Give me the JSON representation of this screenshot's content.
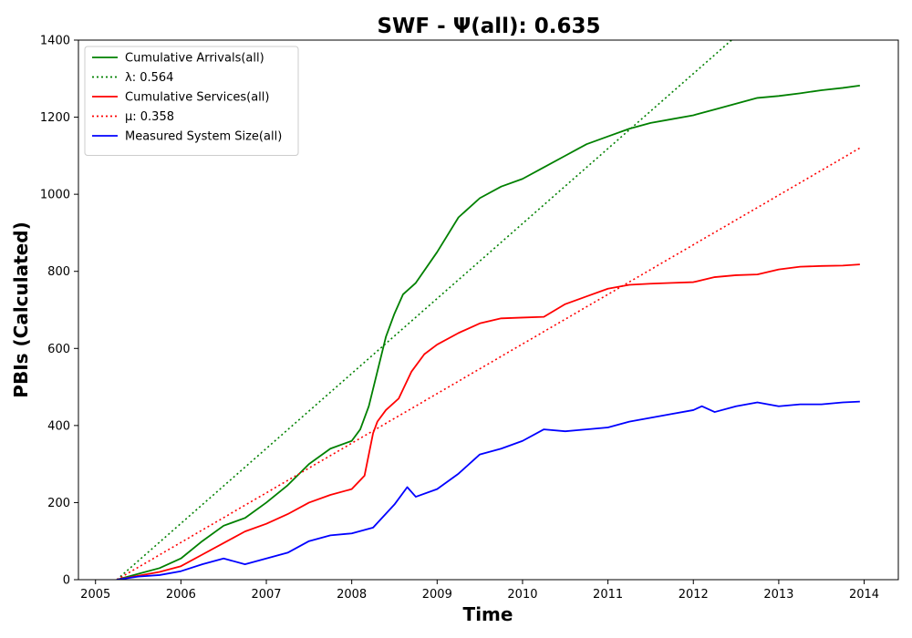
{
  "chart_data": {
    "type": "line",
    "title": "SWF -  Ψ(all): 0.635",
    "xlabel": "Time",
    "ylabel": "PBIs (Calculated)",
    "xlim": [
      2004.8,
      2014.4
    ],
    "ylim": [
      0,
      1400
    ],
    "xticks": [
      2005,
      2006,
      2007,
      2008,
      2009,
      2010,
      2011,
      2012,
      2013,
      2014
    ],
    "yticks": [
      0,
      200,
      400,
      600,
      800,
      1000,
      1200,
      1400
    ],
    "grid": false,
    "legend_position": "upper-left",
    "series": [
      {
        "name": "Cumulative Arrivals(all)",
        "color": "#008000",
        "style": "solid",
        "x": [
          2005.25,
          2005.5,
          2005.75,
          2006.0,
          2006.25,
          2006.5,
          2006.75,
          2007.0,
          2007.25,
          2007.5,
          2007.75,
          2008.0,
          2008.1,
          2008.2,
          2008.3,
          2008.4,
          2008.5,
          2008.6,
          2008.75,
          2009.0,
          2009.25,
          2009.5,
          2009.75,
          2010.0,
          2010.25,
          2010.5,
          2010.75,
          2011.0,
          2011.25,
          2011.5,
          2011.75,
          2012.0,
          2012.25,
          2012.5,
          2012.75,
          2013.0,
          2013.25,
          2013.5,
          2013.75,
          2013.95
        ],
        "y": [
          0,
          15,
          30,
          55,
          100,
          140,
          160,
          200,
          245,
          300,
          340,
          360,
          390,
          450,
          540,
          630,
          690,
          740,
          770,
          850,
          940,
          990,
          1020,
          1040,
          1070,
          1100,
          1130,
          1150,
          1170,
          1185,
          1195,
          1205,
          1220,
          1235,
          1250,
          1255,
          1262,
          1270,
          1276,
          1282
        ]
      },
      {
        "name": "λ: 0.564",
        "color": "#008000",
        "style": "dotted",
        "x": [
          2005.25,
          2012.55
        ],
        "y": [
          0,
          1420
        ]
      },
      {
        "name": "Cumulative Services(all)",
        "color": "#ff0000",
        "style": "solid",
        "x": [
          2005.25,
          2005.5,
          2005.75,
          2006.0,
          2006.25,
          2006.5,
          2006.75,
          2007.0,
          2007.25,
          2007.5,
          2007.75,
          2008.0,
          2008.15,
          2008.25,
          2008.3,
          2008.4,
          2008.55,
          2008.7,
          2008.85,
          2009.0,
          2009.25,
          2009.5,
          2009.75,
          2010.0,
          2010.25,
          2010.5,
          2010.75,
          2011.0,
          2011.25,
          2011.5,
          2011.75,
          2012.0,
          2012.25,
          2012.5,
          2012.75,
          2013.0,
          2013.25,
          2013.5,
          2013.75,
          2013.95
        ],
        "y": [
          0,
          10,
          20,
          35,
          65,
          95,
          125,
          145,
          170,
          200,
          220,
          235,
          270,
          380,
          410,
          440,
          470,
          540,
          585,
          610,
          640,
          665,
          678,
          680,
          682,
          715,
          735,
          755,
          765,
          768,
          770,
          772,
          785,
          790,
          792,
          805,
          812,
          814,
          815,
          818
        ]
      },
      {
        "name": "μ: 0.358",
        "color": "#ff0000",
        "style": "dotted",
        "x": [
          2005.25,
          2013.95
        ],
        "y": [
          0,
          1120
        ]
      },
      {
        "name": "Measured System Size(all)",
        "color": "#0000ff",
        "style": "solid",
        "x": [
          2005.25,
          2005.5,
          2005.75,
          2006.0,
          2006.25,
          2006.5,
          2006.75,
          2007.0,
          2007.25,
          2007.5,
          2007.75,
          2008.0,
          2008.25,
          2008.5,
          2008.65,
          2008.75,
          2009.0,
          2009.25,
          2009.5,
          2009.75,
          2010.0,
          2010.25,
          2010.5,
          2010.75,
          2011.0,
          2011.25,
          2011.5,
          2011.75,
          2012.0,
          2012.1,
          2012.25,
          2012.5,
          2012.75,
          2013.0,
          2013.25,
          2013.5,
          2013.75,
          2013.95
        ],
        "y": [
          0,
          8,
          12,
          22,
          40,
          55,
          40,
          55,
          70,
          100,
          115,
          120,
          135,
          195,
          240,
          215,
          235,
          275,
          325,
          340,
          360,
          390,
          385,
          390,
          395,
          410,
          420,
          430,
          440,
          450,
          435,
          450,
          460,
          450,
          455,
          455,
          460,
          462
        ]
      }
    ]
  }
}
